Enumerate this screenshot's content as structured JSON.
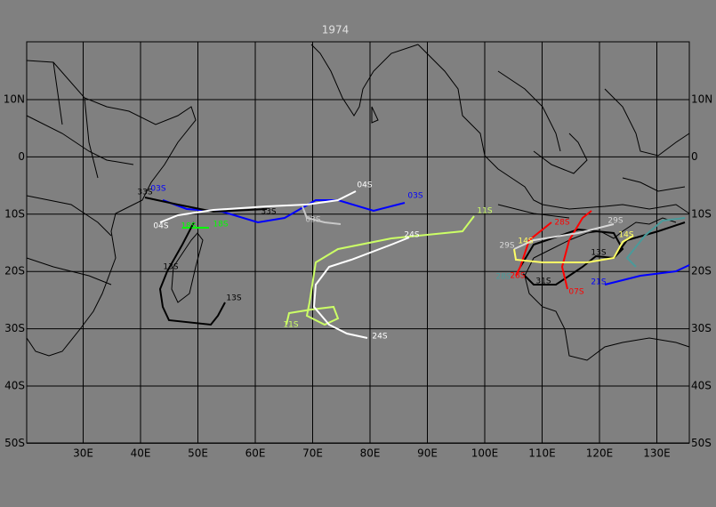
{
  "title": "1974",
  "axes": {
    "lon_labels": [
      "30E",
      "40E",
      "50E",
      "60E",
      "70E",
      "80E",
      "90E",
      "100E",
      "110E",
      "120E",
      "130E"
    ],
    "lat_labels": [
      "10N",
      "0",
      "10S",
      "20S",
      "30S",
      "40S",
      "50S"
    ]
  },
  "track_labels": [
    {
      "text": "03S",
      "color": "#0000ff"
    },
    {
      "text": "33S",
      "color": "#000000"
    },
    {
      "text": "04S",
      "color": "#ffffff"
    },
    {
      "text": "03S",
      "color": "#0000ff"
    },
    {
      "text": "33S",
      "color": "#000000"
    },
    {
      "text": "04S",
      "color": "#ffffff"
    },
    {
      "text": "03S",
      "color": "#c8c8c8"
    },
    {
      "text": "18S",
      "color": "#00ff00"
    },
    {
      "text": "18S",
      "color": "#00ff00"
    },
    {
      "text": "13S",
      "color": "#000000"
    },
    {
      "text": "13S",
      "color": "#000000"
    },
    {
      "text": "11S",
      "color": "#ccff66"
    },
    {
      "text": "24S",
      "color": "#ffffff"
    },
    {
      "text": "11S",
      "color": "#ccff66"
    },
    {
      "text": "24S",
      "color": "#ffffff"
    },
    {
      "text": "28S",
      "color": "#ff0000"
    },
    {
      "text": "29S",
      "color": "#d8d8d8"
    },
    {
      "text": "29S",
      "color": "#d8d8d8"
    },
    {
      "text": "14S",
      "color": "#ffff66"
    },
    {
      "text": "14S",
      "color": "#ffff66"
    },
    {
      "text": "13S",
      "color": "#000000"
    },
    {
      "text": "28S",
      "color": "#ff0000"
    },
    {
      "text": "28S",
      "color": "#4a9a9a"
    },
    {
      "text": "31S",
      "color": "#000000"
    },
    {
      "text": "07S",
      "color": "#ff0000"
    },
    {
      "text": "21S",
      "color": "#0000ff"
    }
  ]
}
